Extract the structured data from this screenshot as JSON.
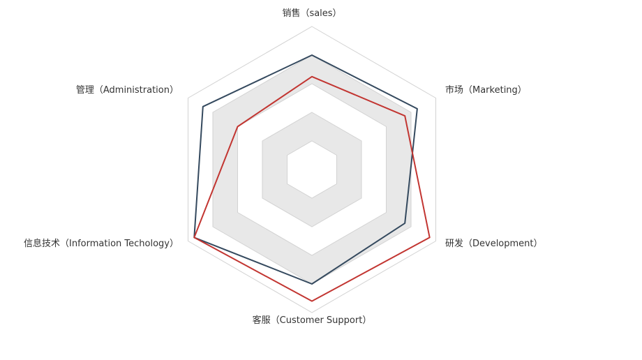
{
  "chart_data": {
    "type": "radar",
    "indicators": [
      "销售（sales）",
      "市场（Marketing）",
      "研发（Development）",
      "客服（Customer Support）",
      "信息技术（Information Techology）",
      "管理（Administration）"
    ],
    "max": 100,
    "split_levels": 5,
    "series": [
      {
        "values": [
          80,
          85,
          75,
          80,
          95,
          88
        ]
      },
      {
        "values": [
          65,
          75,
          95,
          92,
          95,
          60
        ]
      }
    ],
    "colors": {
      "split_band": "#e8e8e8",
      "split_line": "#d2d2d2",
      "series": [
        "#34495e",
        "#c23531"
      ]
    }
  }
}
